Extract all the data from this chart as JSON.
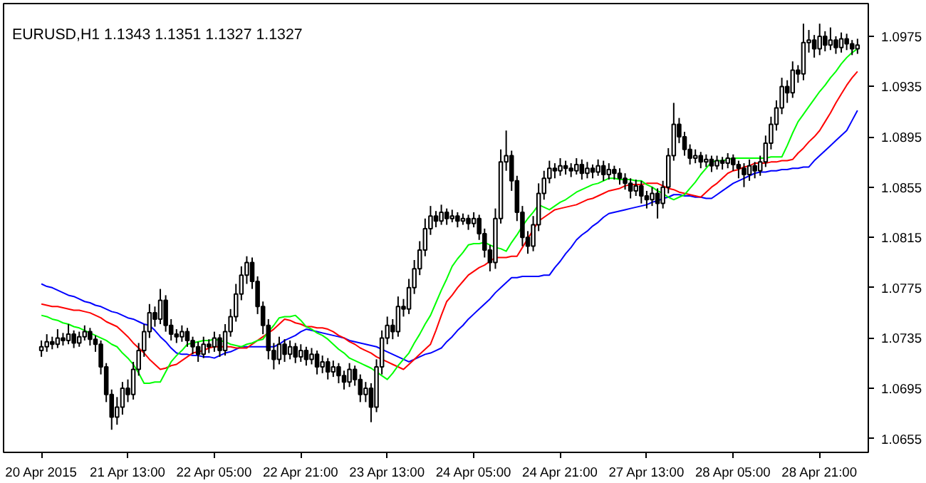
{
  "chart_data": {
    "type": "candlestick",
    "title": "EURUSD,H1  1.1343 1.1351 1.1327 1.1327",
    "categories": [
      "20 Apr 2015",
      null,
      null,
      null,
      null,
      null,
      null,
      null,
      null,
      null,
      null,
      null,
      null,
      null,
      null,
      null,
      "21 Apr 13:00",
      null,
      null,
      null,
      null,
      null,
      null,
      null,
      null,
      null,
      null,
      null,
      null,
      null,
      null,
      null,
      "22 Apr 05:00",
      null,
      null,
      null,
      null,
      null,
      null,
      null,
      null,
      null,
      null,
      null,
      null,
      null,
      null,
      null,
      "22 Apr 21:00",
      null,
      null,
      null,
      null,
      null,
      null,
      null,
      null,
      null,
      null,
      null,
      null,
      null,
      null,
      null,
      "23 Apr 13:00",
      null,
      null,
      null,
      null,
      null,
      null,
      null,
      null,
      null,
      null,
      null,
      null,
      null,
      null,
      null,
      "24 Apr 05:00",
      null,
      null,
      null,
      null,
      null,
      null,
      null,
      null,
      null,
      null,
      null,
      null,
      null,
      null,
      null,
      "24 Apr 21:00",
      null,
      null,
      null,
      null,
      null,
      null,
      null,
      null,
      null,
      null,
      null,
      null,
      null,
      null,
      null,
      "27 Apr 13:00",
      null,
      null,
      null,
      null,
      null,
      null,
      null,
      null,
      null,
      null,
      null,
      null,
      null,
      null,
      null,
      "28 Apr 05:00",
      null,
      null,
      null,
      null,
      null,
      null,
      null,
      null,
      null,
      null,
      null,
      null,
      null,
      null,
      null,
      "28 Apr 21:00",
      null,
      null,
      null,
      null,
      null,
      null,
      null
    ],
    "ohlc": [
      [
        1.0725,
        1.0733,
        1.072,
        1.0728
      ],
      [
        1.0728,
        1.0738,
        1.0724,
        1.0732
      ],
      [
        1.0732,
        1.0736,
        1.0726,
        1.073
      ],
      [
        1.073,
        1.0742,
        1.0727,
        1.0735
      ],
      [
        1.0735,
        1.0739,
        1.0729,
        1.0733
      ],
      [
        1.0733,
        1.0746,
        1.073,
        1.0738
      ],
      [
        1.0738,
        1.0741,
        1.0727,
        1.0731
      ],
      [
        1.0731,
        1.074,
        1.0728,
        1.0736
      ],
      [
        1.0736,
        1.0745,
        1.0733,
        1.074
      ],
      [
        1.074,
        1.0743,
        1.0729,
        1.0734
      ],
      [
        1.0734,
        1.0737,
        1.0724,
        1.073
      ],
      [
        1.073,
        1.0733,
        1.0706,
        1.0712
      ],
      [
        1.0712,
        1.0715,
        1.0684,
        1.069
      ],
      [
        1.069,
        1.0694,
        1.0662,
        1.0672
      ],
      [
        1.0672,
        1.0688,
        1.0666,
        1.068
      ],
      [
        1.068,
        1.07,
        1.0674,
        1.0695
      ],
      [
        1.0695,
        1.0702,
        1.0684,
        1.069
      ],
      [
        1.069,
        1.0716,
        1.0686,
        1.071
      ],
      [
        1.071,
        1.0731,
        1.0705,
        1.0725
      ],
      [
        1.0725,
        1.0746,
        1.072,
        1.074
      ],
      [
        1.074,
        1.0762,
        1.0735,
        1.0755
      ],
      [
        1.0755,
        1.076,
        1.0744,
        1.075
      ],
      [
        1.075,
        1.0774,
        1.0746,
        1.0765
      ],
      [
        1.0765,
        1.0769,
        1.074,
        1.0745
      ],
      [
        1.0745,
        1.075,
        1.0733,
        1.0738
      ],
      [
        1.0738,
        1.0742,
        1.0731,
        1.0736
      ],
      [
        1.0736,
        1.0745,
        1.0732,
        1.074
      ],
      [
        1.074,
        1.0743,
        1.0728,
        1.0733
      ],
      [
        1.0733,
        1.0736,
        1.0722,
        1.0728
      ],
      [
        1.0728,
        1.0732,
        1.0716,
        1.0722
      ],
      [
        1.0722,
        1.0736,
        1.0719,
        1.073
      ],
      [
        1.073,
        1.0734,
        1.0723,
        1.0728
      ],
      [
        1.0728,
        1.074,
        1.0724,
        1.0735
      ],
      [
        1.0735,
        1.0738,
        1.072,
        1.0725
      ],
      [
        1.0725,
        1.0746,
        1.0721,
        1.074
      ],
      [
        1.074,
        1.0758,
        1.0736,
        1.0752
      ],
      [
        1.0752,
        1.0778,
        1.0748,
        1.077
      ],
      [
        1.077,
        1.0792,
        1.0765,
        1.0785
      ],
      [
        1.0785,
        1.08,
        1.0778,
        1.0795
      ],
      [
        1.0795,
        1.0799,
        1.0774,
        1.078
      ],
      [
        1.078,
        1.0784,
        1.0754,
        1.076
      ],
      [
        1.076,
        1.0764,
        1.0738,
        1.0745
      ],
      [
        1.0745,
        1.075,
        1.0718,
        1.0725
      ],
      [
        1.0725,
        1.0731,
        1.071,
        1.0718
      ],
      [
        1.0718,
        1.0736,
        1.0714,
        1.073
      ],
      [
        1.073,
        1.0734,
        1.0716,
        1.0722
      ],
      [
        1.0722,
        1.0733,
        1.0718,
        1.0728
      ],
      [
        1.0728,
        1.0731,
        1.0715,
        1.072
      ],
      [
        1.072,
        1.073,
        1.0716,
        1.0725
      ],
      [
        1.0725,
        1.0728,
        1.0713,
        1.0718
      ],
      [
        1.0718,
        1.0727,
        1.0714,
        1.0722
      ],
      [
        1.0722,
        1.0725,
        1.0706,
        1.0712
      ],
      [
        1.0712,
        1.0721,
        1.0707,
        1.0716
      ],
      [
        1.0716,
        1.0719,
        1.0702,
        1.0708
      ],
      [
        1.0708,
        1.0717,
        1.0704,
        1.0712
      ],
      [
        1.0712,
        1.0715,
        1.0699,
        1.0705
      ],
      [
        1.0705,
        1.0709,
        1.0694,
        1.07
      ],
      [
        1.07,
        1.0715,
        1.0696,
        1.071
      ],
      [
        1.071,
        1.0713,
        1.0697,
        1.0702
      ],
      [
        1.0702,
        1.0706,
        1.0684,
        1.069
      ],
      [
        1.069,
        1.07,
        1.0684,
        1.0695
      ],
      [
        1.0695,
        1.0699,
        1.0668,
        1.068
      ],
      [
        1.068,
        1.0718,
        1.0676,
        1.0712
      ],
      [
        1.0712,
        1.0741,
        1.0706,
        1.0735
      ],
      [
        1.0735,
        1.0752,
        1.073,
        1.0745
      ],
      [
        1.0745,
        1.075,
        1.0734,
        1.074
      ],
      [
        1.074,
        1.0768,
        1.0736,
        1.076
      ],
      [
        1.076,
        1.0766,
        1.0752,
        1.0758
      ],
      [
        1.0758,
        1.0782,
        1.0754,
        1.0775
      ],
      [
        1.0775,
        1.0797,
        1.077,
        1.079
      ],
      [
        1.079,
        1.0812,
        1.0785,
        1.0805
      ],
      [
        1.0805,
        1.083,
        1.08,
        1.0822
      ],
      [
        1.0822,
        1.084,
        1.0817,
        1.0832
      ],
      [
        1.0832,
        1.0836,
        1.0823,
        1.0828
      ],
      [
        1.0828,
        1.0841,
        1.0825,
        1.0835
      ],
      [
        1.0835,
        1.0838,
        1.0825,
        1.083
      ],
      [
        1.083,
        1.0837,
        1.0827,
        1.0832
      ],
      [
        1.0832,
        1.0835,
        1.0823,
        1.0828
      ],
      [
        1.0828,
        1.0834,
        1.0825,
        1.083
      ],
      [
        1.083,
        1.0833,
        1.0821,
        1.0826
      ],
      [
        1.0826,
        1.0835,
        1.0823,
        1.083
      ],
      [
        1.083,
        1.0833,
        1.0813,
        1.0818
      ],
      [
        1.0818,
        1.0822,
        1.0799,
        1.0805
      ],
      [
        1.0805,
        1.0809,
        1.0788,
        1.0795
      ],
      [
        1.0795,
        1.0838,
        1.079,
        1.083
      ],
      [
        1.083,
        1.0885,
        1.0826,
        1.0875
      ],
      [
        1.0875,
        1.09,
        1.0868,
        1.088
      ],
      [
        1.088,
        1.0884,
        1.0852,
        1.086
      ],
      [
        1.086,
        1.0864,
        1.0828,
        1.0835
      ],
      [
        1.0835,
        1.084,
        1.0808,
        1.0815
      ],
      [
        1.0815,
        1.082,
        1.0802,
        1.0808
      ],
      [
        1.0808,
        1.0832,
        1.0804,
        1.0825
      ],
      [
        1.0825,
        1.0858,
        1.082,
        1.085
      ],
      [
        1.085,
        1.0868,
        1.0845,
        1.0862
      ],
      [
        1.0862,
        1.0876,
        1.0858,
        1.087
      ],
      [
        1.087,
        1.0874,
        1.0862,
        1.0868
      ],
      [
        1.0868,
        1.0878,
        1.0864,
        1.0872
      ],
      [
        1.0872,
        1.0876,
        1.0865,
        1.087
      ],
      [
        1.087,
        1.0874,
        1.0863,
        1.0868
      ],
      [
        1.0868,
        1.0878,
        1.0865,
        1.0873
      ],
      [
        1.0873,
        1.0877,
        1.0861,
        1.0866
      ],
      [
        1.0866,
        1.0875,
        1.0862,
        1.087
      ],
      [
        1.087,
        1.0873,
        1.0862,
        1.0867
      ],
      [
        1.0867,
        1.0877,
        1.0864,
        1.0872
      ],
      [
        1.0872,
        1.0876,
        1.086,
        1.0865
      ],
      [
        1.0865,
        1.0874,
        1.0861,
        1.0869
      ],
      [
        1.0869,
        1.0872,
        1.0861,
        1.0866
      ],
      [
        1.0866,
        1.087,
        1.0857,
        1.0862
      ],
      [
        1.0862,
        1.0866,
        1.0853,
        1.0858
      ],
      [
        1.0858,
        1.0862,
        1.0846,
        1.0852
      ],
      [
        1.0852,
        1.0861,
        1.0848,
        1.0856
      ],
      [
        1.0856,
        1.086,
        1.0842,
        1.0848
      ],
      [
        1.0848,
        1.0852,
        1.0838,
        1.0845
      ],
      [
        1.0845,
        1.0855,
        1.084,
        1.085
      ],
      [
        1.085,
        1.0854,
        1.083,
        1.0842
      ],
      [
        1.0842,
        1.086,
        1.0838,
        1.0855
      ],
      [
        1.0855,
        1.0886,
        1.085,
        1.088
      ],
      [
        1.088,
        1.0922,
        1.0876,
        1.0905
      ],
      [
        1.0905,
        1.091,
        1.089,
        1.0895
      ],
      [
        1.0895,
        1.0899,
        1.088,
        1.0885
      ],
      [
        1.0885,
        1.0889,
        1.0873,
        1.0878
      ],
      [
        1.0878,
        1.0885,
        1.0874,
        1.088
      ],
      [
        1.088,
        1.0883,
        1.087,
        1.0875
      ],
      [
        1.0875,
        1.0881,
        1.0871,
        1.0877
      ],
      [
        1.0877,
        1.088,
        1.0867,
        1.0872
      ],
      [
        1.0872,
        1.088,
        1.0869,
        1.0876
      ],
      [
        1.0876,
        1.0879,
        1.0869,
        1.0874
      ],
      [
        1.0874,
        1.0882,
        1.087,
        1.0878
      ],
      [
        1.0878,
        1.0881,
        1.0868,
        1.0873
      ],
      [
        1.0873,
        1.0876,
        1.0862,
        1.087
      ],
      [
        1.087,
        1.0874,
        1.0855,
        1.0865
      ],
      [
        1.0865,
        1.0877,
        1.086,
        1.0872
      ],
      [
        1.0872,
        1.0875,
        1.0862,
        1.0868
      ],
      [
        1.0868,
        1.088,
        1.0864,
        1.0875
      ],
      [
        1.0875,
        1.0896,
        1.0871,
        1.089
      ],
      [
        1.089,
        1.0911,
        1.0885,
        1.0905
      ],
      [
        1.0905,
        1.0924,
        1.09,
        1.0918
      ],
      [
        1.0918,
        1.0942,
        1.0913,
        1.0935
      ],
      [
        1.0935,
        1.094,
        1.0922,
        1.093
      ],
      [
        1.093,
        1.0955,
        1.0926,
        1.0948
      ],
      [
        1.0948,
        1.0952,
        1.0938,
        1.0945
      ],
      [
        1.0945,
        1.0985,
        1.094,
        1.097
      ],
      [
        1.097,
        1.098,
        1.0962,
        1.0972
      ],
      [
        1.0972,
        1.0976,
        1.0958,
        1.0965
      ],
      [
        1.0965,
        1.0985,
        1.096,
        1.0975
      ],
      [
        1.0975,
        1.0979,
        1.0963,
        1.0968
      ],
      [
        1.0968,
        1.0982,
        1.0964,
        1.0972
      ],
      [
        1.0972,
        1.0975,
        1.0961,
        1.0966
      ],
      [
        1.0966,
        1.0978,
        1.0962,
        1.0973
      ],
      [
        1.0973,
        1.0977,
        1.0964,
        1.0969
      ],
      [
        1.0969,
        1.0972,
        1.096,
        1.0965
      ],
      [
        1.0965,
        1.0973,
        1.0961,
        1.0968
      ]
    ],
    "series": [
      {
        "type": "line",
        "color": "#0000ff",
        "values": [
          1.0778,
          1.0776,
          1.0775,
          1.0773,
          1.0771,
          1.0769,
          1.0768,
          1.0766,
          1.0764,
          1.0763,
          1.0761,
          1.076,
          1.0758,
          1.0756,
          1.0755,
          1.0753,
          1.0751,
          1.075,
          1.0748,
          1.0746,
          1.0745,
          1.0741,
          1.0736,
          1.0732,
          1.0727,
          1.0723,
          1.0722,
          1.0722,
          1.0721,
          1.0721,
          1.072,
          1.072,
          1.0719,
          1.0721,
          1.0723,
          1.0724,
          1.0726,
          1.0728,
          1.0728,
          1.0728,
          1.0728,
          1.0728,
          1.0728,
          1.0728,
          1.073,
          1.0733,
          1.0735,
          1.0737,
          1.074,
          1.0742,
          1.0741,
          1.074,
          1.0739,
          1.0738,
          1.0737,
          1.0736,
          1.0735,
          1.0733,
          1.0732,
          1.0731,
          1.073,
          1.0729,
          1.0728,
          1.0726,
          1.0724,
          1.0722,
          1.072,
          1.0718,
          1.0716,
          1.0718,
          1.072,
          1.0722,
          1.0723,
          1.0725,
          1.0727,
          1.0732,
          1.0736,
          1.0741,
          1.0745,
          1.075,
          1.0754,
          1.0758,
          1.0762,
          1.0766,
          1.0771,
          1.0775,
          1.0779,
          1.0783,
          1.0783,
          1.0784,
          1.0784,
          1.0784,
          1.0784,
          1.0785,
          1.0785,
          1.0791,
          1.0796,
          1.0802,
          1.0807,
          1.0813,
          1.0817,
          1.082,
          1.0824,
          1.0827,
          1.0831,
          1.0834,
          1.0835,
          1.0836,
          1.0837,
          1.0838,
          1.0839,
          1.084,
          1.0841,
          1.0843,
          1.0844,
          1.0846,
          1.0847,
          1.0849,
          1.0849,
          1.0848,
          1.0848,
          1.0847,
          1.0847,
          1.0846,
          1.0846,
          1.0849,
          1.0852,
          1.0855,
          1.0858,
          1.086,
          1.0862,
          1.0864,
          1.0866,
          1.0867,
          1.0867,
          1.0868,
          1.0868,
          1.0869,
          1.0869,
          1.087,
          1.087,
          1.0871,
          1.0871,
          1.0876,
          1.088,
          1.0884,
          1.0888,
          1.0892,
          1.0896,
          1.09,
          1.0908,
          1.0916
        ]
      },
      {
        "type": "line",
        "color": "#ff0000",
        "values": [
          1.0762,
          1.0761,
          1.076,
          1.076,
          1.0759,
          1.0758,
          1.0757,
          1.0757,
          1.0756,
          1.0755,
          1.0753,
          1.0751,
          1.0748,
          1.0746,
          1.0744,
          1.074,
          1.0736,
          1.0731,
          1.0727,
          1.0723,
          1.0718,
          1.0714,
          1.071,
          1.0711,
          1.0713,
          1.0714,
          1.0717,
          1.072,
          1.0723,
          1.0724,
          1.0725,
          1.0727,
          1.0728,
          1.0728,
          1.0728,
          1.0728,
          1.0727,
          1.0727,
          1.0727,
          1.073,
          1.0733,
          1.0736,
          1.0739,
          1.0742,
          1.0746,
          1.075,
          1.0749,
          1.0747,
          1.0746,
          1.0744,
          1.0744,
          1.0743,
          1.0743,
          1.0742,
          1.074,
          1.0737,
          1.0735,
          1.0732,
          1.073,
          1.0727,
          1.0725,
          1.0723,
          1.072,
          1.0718,
          1.0716,
          1.0714,
          1.0712,
          1.071,
          1.0714,
          1.0718,
          1.0722,
          1.0726,
          1.073,
          1.0741,
          1.0753,
          1.0764,
          1.0769,
          1.0775,
          1.078,
          1.0785,
          1.0788,
          1.0791,
          1.0793,
          1.0796,
          1.0799,
          1.0799,
          1.0799,
          1.08,
          1.08,
          1.0807,
          1.0814,
          1.0821,
          1.0828,
          1.0831,
          1.0834,
          1.0837,
          1.0838,
          1.0839,
          1.084,
          1.0841,
          1.0843,
          1.0845,
          1.0846,
          1.0848,
          1.085,
          1.0852,
          1.0853,
          1.0854,
          1.0856,
          1.0857,
          1.0857,
          1.0857,
          1.0858,
          1.0858,
          1.0858,
          1.0856,
          1.0854,
          1.0853,
          1.0851,
          1.085,
          1.0849,
          1.0848,
          1.0847,
          1.0851,
          1.0855,
          1.0858,
          1.0862,
          1.0866,
          1.0868,
          1.0869,
          1.0871,
          1.0872,
          1.0874,
          1.0874,
          1.0874,
          1.0875,
          1.0875,
          1.0876,
          1.0876,
          1.0877,
          1.0882,
          1.0886,
          1.0891,
          1.0895,
          1.09,
          1.0907,
          1.0914,
          1.0922,
          1.0929,
          1.0936,
          1.0942,
          1.0947
        ]
      },
      {
        "type": "line",
        "color": "#00ff00",
        "values": [
          1.0753,
          1.0752,
          1.075,
          1.0749,
          1.0747,
          1.0746,
          1.0744,
          1.0743,
          1.0741,
          1.0739,
          1.0737,
          1.0735,
          1.0733,
          1.073,
          1.0728,
          1.0723,
          1.0719,
          1.0714,
          1.0707,
          1.0699,
          1.0699,
          1.07,
          1.07,
          1.0708,
          1.0716,
          1.0721,
          1.0725,
          1.073,
          1.0731,
          1.0732,
          1.0733,
          1.0733,
          1.0734,
          1.0733,
          1.0732,
          1.073,
          1.0729,
          1.0728,
          1.073,
          1.0731,
          1.0733,
          1.0734,
          1.074,
          1.0745,
          1.0751,
          1.0752,
          1.0752,
          1.0753,
          1.0749,
          1.0744,
          1.0742,
          1.0739,
          1.0737,
          1.0734,
          1.073,
          1.0726,
          1.0723,
          1.0719,
          1.0717,
          1.0715,
          1.0713,
          1.0711,
          1.0708,
          1.0705,
          1.0702,
          1.0707,
          1.0713,
          1.0718,
          1.0723,
          1.0731,
          1.0738,
          1.0746,
          1.0753,
          1.0763,
          1.0773,
          1.0782,
          1.0792,
          1.0798,
          1.0803,
          1.0809,
          1.081,
          1.081,
          1.0811,
          1.0809,
          1.0807,
          1.0806,
          1.0804,
          1.0811,
          1.0817,
          1.0824,
          1.083,
          1.0835,
          1.0841,
          1.0839,
          1.0837,
          1.084,
          1.0843,
          1.0845,
          1.0848,
          1.0851,
          1.0853,
          1.0855,
          1.0857,
          1.0858,
          1.086,
          1.0862,
          1.0862,
          1.0861,
          1.0861,
          1.0861,
          1.086,
          1.086,
          1.0857,
          1.0855,
          1.0852,
          1.085,
          1.0847,
          1.0845,
          1.0847,
          1.0849,
          1.0854,
          1.0859,
          1.0865,
          1.087,
          1.0875,
          1.0876,
          1.0876,
          1.0877,
          1.0878,
          1.0878,
          1.0878,
          1.0878,
          1.0878,
          1.0878,
          1.0878,
          1.0879,
          1.0879,
          1.0879,
          1.0888,
          1.0898,
          1.0907,
          1.0913,
          1.0919,
          1.0925,
          1.0931,
          1.0936,
          1.0942,
          1.0947,
          1.0953,
          1.0958,
          1.0962,
          1.0965
        ]
      }
    ],
    "ylim": [
      1.0644,
      1.1001
    ],
    "yticks": [
      1.0655,
      1.0695,
      1.0735,
      1.0775,
      1.0815,
      1.0855,
      1.0895,
      1.0935,
      1.0975
    ],
    "grid": false
  }
}
